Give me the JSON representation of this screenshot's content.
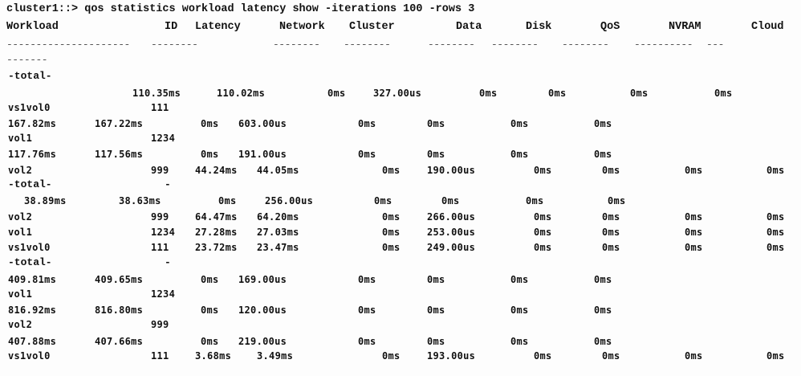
{
  "terminal": {
    "command_line": "cluster1::> qos statistics workload latency show -iterations 100 -rows 3",
    "headers": [
      "Workload",
      "ID",
      "Latency",
      "Network",
      "Cluster",
      "Data",
      "Disk",
      "QoS",
      "NVRAM",
      "Cloud"
    ],
    "separator": [
      "---------------",
      "------",
      "--------",
      "--------",
      "--------",
      "--------",
      "--------",
      "--------",
      "----------",
      "---"
    ],
    "separator_wrap": "-------",
    "lines": [
      {
        "cells": [
          "-total-"
        ]
      },
      {
        "cells": [
          "110.35ms",
          "110.02ms",
          "0ms",
          "327.00us",
          "0ms",
          "0ms",
          "0ms",
          "0ms"
        ]
      },
      {
        "cells": [
          "vs1vol0",
          "111"
        ]
      },
      {
        "cells": [
          "167.82ms",
          "167.22ms",
          "0ms",
          "603.00us",
          "0ms",
          "0ms",
          "0ms",
          "0ms"
        ]
      },
      {
        "cells": [
          "vol1",
          "1234"
        ]
      },
      {
        "cells": [
          "117.76ms",
          "117.56ms",
          "0ms",
          "191.00us",
          "0ms",
          "0ms",
          "0ms",
          "0ms"
        ]
      },
      {
        "cells": [
          "vol2",
          "999",
          "44.24ms",
          "44.05ms",
          "0ms",
          "190.00us",
          "0ms",
          "0ms",
          "0ms",
          "0ms"
        ]
      },
      {
        "cells": [
          "-total-",
          "-"
        ]
      },
      {
        "cells": [
          "38.89ms",
          "38.63ms",
          "0ms",
          "256.00us",
          "0ms",
          "0ms",
          "0ms",
          "0ms"
        ]
      },
      {
        "cells": [
          "vol2",
          "999",
          "64.47ms",
          "64.20ms",
          "0ms",
          "266.00us",
          "0ms",
          "0ms",
          "0ms",
          "0ms"
        ]
      },
      {
        "cells": [
          "vol1",
          "1234",
          "27.28ms",
          "27.03ms",
          "0ms",
          "253.00us",
          "0ms",
          "0ms",
          "0ms",
          "0ms"
        ]
      },
      {
        "cells": [
          "vs1vol0",
          "111",
          "23.72ms",
          "23.47ms",
          "0ms",
          "249.00us",
          "0ms",
          "0ms",
          "0ms",
          "0ms"
        ]
      },
      {
        "cells": [
          "-total-",
          "-"
        ]
      },
      {
        "cells": [
          "409.81ms",
          "409.65ms",
          "0ms",
          "169.00us",
          "0ms",
          "0ms",
          "0ms",
          "0ms"
        ]
      },
      {
        "cells": [
          "vol1",
          "1234"
        ]
      },
      {
        "cells": [
          "816.92ms",
          "816.80ms",
          "0ms",
          "120.00us",
          "0ms",
          "0ms",
          "0ms",
          "0ms"
        ]
      },
      {
        "cells": [
          "vol2",
          "999"
        ]
      },
      {
        "cells": [
          "407.88ms",
          "407.66ms",
          "0ms",
          "219.00us",
          "0ms",
          "0ms",
          "0ms",
          "0ms"
        ]
      },
      {
        "cells": [
          "vs1vol0",
          "111",
          "3.68ms",
          "3.49ms",
          "0ms",
          "193.00us",
          "0ms",
          "0ms",
          "0ms",
          "0ms"
        ]
      }
    ]
  }
}
